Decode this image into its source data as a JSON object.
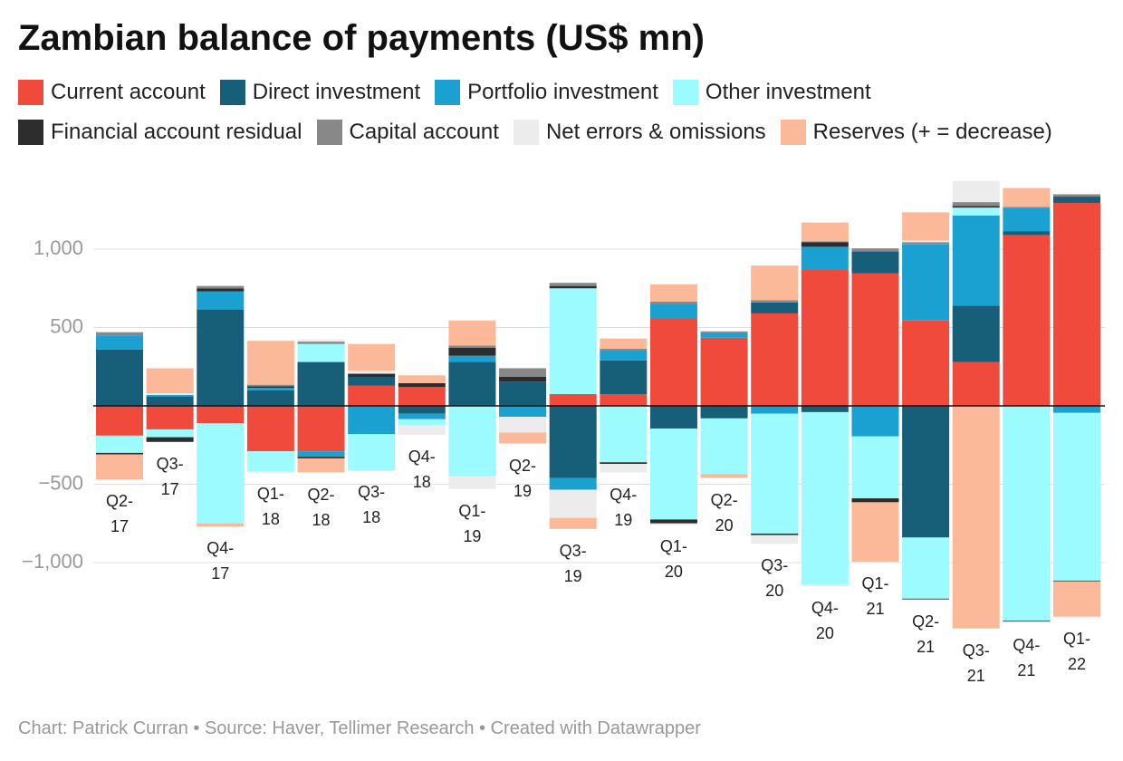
{
  "title": "Zambian balance of payments (US$ mn)",
  "footer": "Chart: Patrick Curran • Source: Haver, Tellimer Research • Created with Datawrapper",
  "chart_data": {
    "type": "bar",
    "stacked": true,
    "categories": [
      "Q2-17",
      "Q3-17",
      "Q4-17",
      "Q1-18",
      "Q2-18",
      "Q3-18",
      "Q4-18",
      "Q1-19",
      "Q2-19",
      "Q3-19",
      "Q4-19",
      "Q1-20",
      "Q2-20",
      "Q3-20",
      "Q4-20",
      "Q1-21",
      "Q2-21",
      "Q3-21",
      "Q4-21",
      "Q1-22"
    ],
    "series": [
      {
        "name": "Current account",
        "color": "#ef4a3c",
        "values": [
          -190,
          -150,
          -110,
          -290,
          -290,
          130,
          120,
          0,
          0,
          75,
          75,
          555,
          435,
          590,
          870,
          845,
          545,
          280,
          1090,
          1295
        ]
      },
      {
        "name": "Direct investment",
        "color": "#175e78",
        "values": [
          360,
          60,
          615,
          100,
          280,
          55,
          -50,
          280,
          155,
          -460,
          215,
          -145,
          -80,
          70,
          -40,
          140,
          -840,
          360,
          25,
          40
        ]
      },
      {
        "name": "Portfolio investment",
        "color": "#1aa1d1",
        "values": [
          90,
          10,
          115,
          15,
          -35,
          -180,
          -35,
          40,
          -70,
          -75,
          65,
          95,
          30,
          -50,
          145,
          -195,
          485,
          575,
          150,
          -45
        ]
      },
      {
        "name": "Other investment",
        "color": "#9cfbff",
        "values": [
          -110,
          -50,
          -640,
          -130,
          115,
          -230,
          -40,
          -450,
          0,
          675,
          -360,
          -580,
          -355,
          -765,
          -1100,
          -395,
          -390,
          50,
          -1370,
          -1070
        ]
      },
      {
        "name": "Financial account residual",
        "color": "#2d2d2d",
        "values": [
          -10,
          -30,
          20,
          10,
          -10,
          20,
          25,
          50,
          30,
          15,
          -10,
          -25,
          0,
          -10,
          30,
          -25,
          -5,
          10,
          -5,
          -5
        ]
      },
      {
        "name": "Capital account",
        "color": "#888888",
        "values": [
          20,
          0,
          15,
          10,
          15,
          0,
          0,
          15,
          55,
          20,
          10,
          15,
          10,
          15,
          5,
          20,
          15,
          25,
          5,
          15
        ]
      },
      {
        "name": "Net errors & omissions",
        "color": "#ececec",
        "values": [
          0,
          10,
          0,
          0,
          15,
          20,
          -60,
          -80,
          -100,
          -180,
          -55,
          -10,
          0,
          -55,
          -10,
          0,
          10,
          135,
          -10,
          0
        ]
      },
      {
        "name": "Reserves (+ = decrease)",
        "color": "#fbb99a",
        "values": [
          -160,
          160,
          -20,
          280,
          -90,
          170,
          50,
          160,
          -70,
          -70,
          65,
          110,
          -25,
          220,
          120,
          -380,
          180,
          -1420,
          120,
          -225
        ]
      }
    ],
    "ylim": [
      -1500,
      1500
    ],
    "yticks": [
      {
        "value": -1000,
        "label": "−1,000"
      },
      {
        "value": -500,
        "label": "−500"
      },
      500,
      {
        "value": 1000,
        "label": "1,000"
      }
    ],
    "grid": true
  }
}
